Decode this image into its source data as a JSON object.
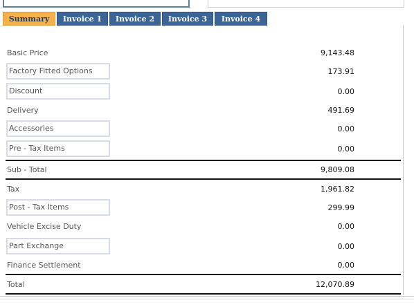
{
  "tabs": [
    {
      "label": "Summary"
    },
    {
      "label": "Invoice 1"
    },
    {
      "label": "Invoice 2"
    },
    {
      "label": "Invoice 3"
    },
    {
      "label": "Invoice 4"
    }
  ],
  "rows": {
    "basic_price": {
      "label": "Basic Price",
      "value": "9,143.48"
    },
    "factory_fitted_options": {
      "label": "Factory Fitted Options",
      "value": "173.91"
    },
    "discount": {
      "label": "Discount",
      "value": "0.00"
    },
    "delivery": {
      "label": "Delivery",
      "value": "491.69"
    },
    "accessories": {
      "label": "Accessories",
      "value": "0.00"
    },
    "pre_tax_items": {
      "label": "Pre - Tax Items",
      "value": "0.00"
    },
    "sub_total": {
      "label": "Sub - Total",
      "value": "9,809.08"
    },
    "tax": {
      "label": "Tax",
      "value": "1,961.82"
    },
    "post_tax_items": {
      "label": "Post - Tax Items",
      "value": "299.99"
    },
    "vehicle_excise_duty": {
      "label": "Vehicle Excise Duty",
      "value": "0.00"
    },
    "part_exchange": {
      "label": "Part Exchange",
      "value": "0.00"
    },
    "finance_settlement": {
      "label": "Finance Settlement",
      "value": "0.00"
    },
    "total": {
      "label": "Total",
      "value": "12,070.89"
    }
  }
}
